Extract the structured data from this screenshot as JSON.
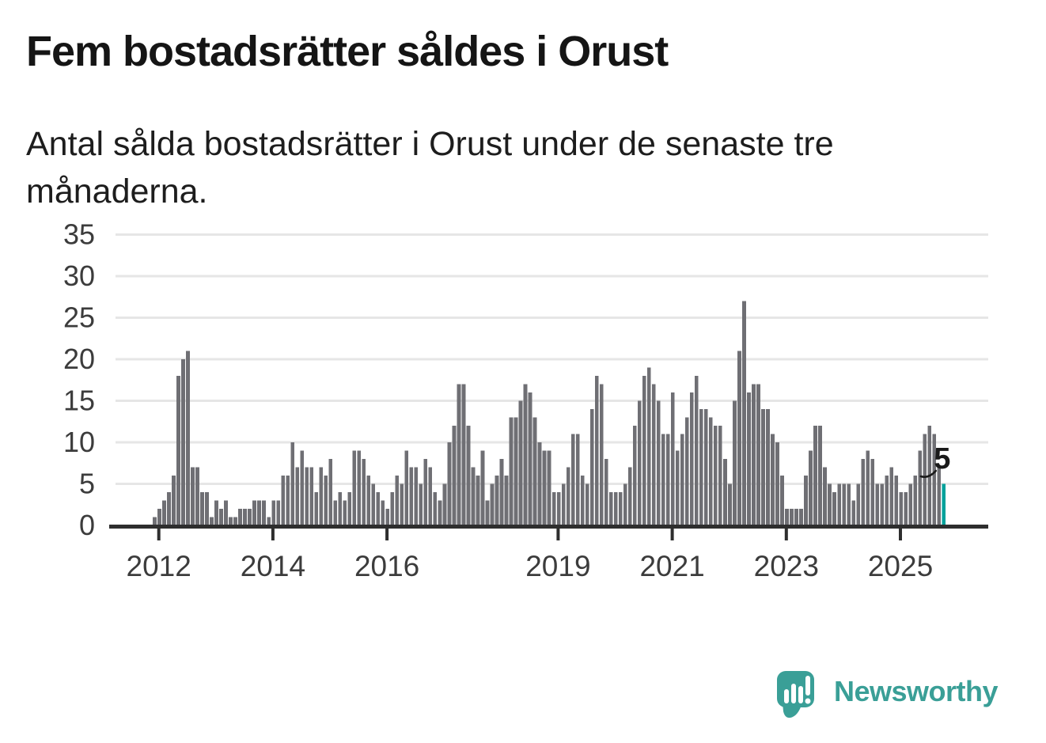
{
  "header": {
    "title": "Fem bostadsrätter såldes i Orust",
    "subtitle": "Antal sålda bostadsrätter i Orust under de senaste tre månaderna."
  },
  "annotation": {
    "label": "5"
  },
  "branding": {
    "name": "Newsworthy",
    "logo_icon": "speech-bubble-bar-chart-icon"
  },
  "colors": {
    "bar": "#6f6f74",
    "highlight": "#00a19b",
    "grid": "#e6e6e6",
    "axis": "#2e2e2e",
    "axis_text": "#3c3c3c",
    "annotation_text": "#1a1a1a",
    "logo": "#3a9f97"
  },
  "chart_data": {
    "type": "bar",
    "title": "Fem bostadsrätter såldes i Orust",
    "subtitle": "Antal sålda bostadsrätter i Orust under de senaste tre månaderna.",
    "unit": "sålda bostadsrätter (rullande tre månader)",
    "x_axis": {
      "start_year": 2012,
      "interval": "monthly",
      "tick_years": [
        2012,
        2014,
        2016,
        2019,
        2021,
        2023,
        2025
      ],
      "tick_labels": [
        "2012",
        "2014",
        "2016",
        "2019",
        "2021",
        "2023",
        "2025"
      ]
    },
    "y_ticks": [
      0,
      5,
      10,
      15,
      20,
      25,
      30,
      35
    ],
    "ylim": [
      0,
      35
    ],
    "grid": true,
    "legend": false,
    "values": [
      1,
      2,
      3,
      4,
      6,
      18,
      20,
      21,
      7,
      7,
      4,
      4,
      1,
      3,
      2,
      3,
      1,
      1,
      2,
      2,
      2,
      3,
      3,
      3,
      1,
      3,
      3,
      6,
      6,
      10,
      7,
      9,
      7,
      7,
      4,
      7,
      6,
      8,
      3,
      4,
      3,
      4,
      9,
      9,
      8,
      6,
      5,
      4,
      3,
      2,
      4,
      6,
      5,
      9,
      7,
      7,
      5,
      8,
      7,
      4,
      3,
      5,
      10,
      12,
      17,
      17,
      12,
      7,
      6,
      9,
      3,
      5,
      6,
      8,
      6,
      13,
      13,
      15,
      17,
      16,
      13,
      10,
      9,
      9,
      4,
      4,
      5,
      7,
      11,
      11,
      6,
      5,
      14,
      18,
      17,
      8,
      4,
      4,
      4,
      5,
      7,
      12,
      15,
      18,
      19,
      17,
      15,
      11,
      11,
      16,
      9,
      11,
      13,
      16,
      18,
      14,
      14,
      13,
      12,
      12,
      8,
      5,
      15,
      21,
      27,
      16,
      17,
      17,
      14,
      14,
      11,
      10,
      6,
      2,
      2,
      2,
      2,
      6,
      9,
      12,
      12,
      7,
      5,
      4,
      5,
      5,
      5,
      3,
      5,
      8,
      9,
      8,
      5,
      5,
      6,
      7,
      6,
      4,
      4,
      5,
      6,
      9,
      11,
      12,
      11,
      7,
      5
    ],
    "highlight_last_bar": true,
    "last_bar_value": 5,
    "last_bar_label": "5"
  }
}
